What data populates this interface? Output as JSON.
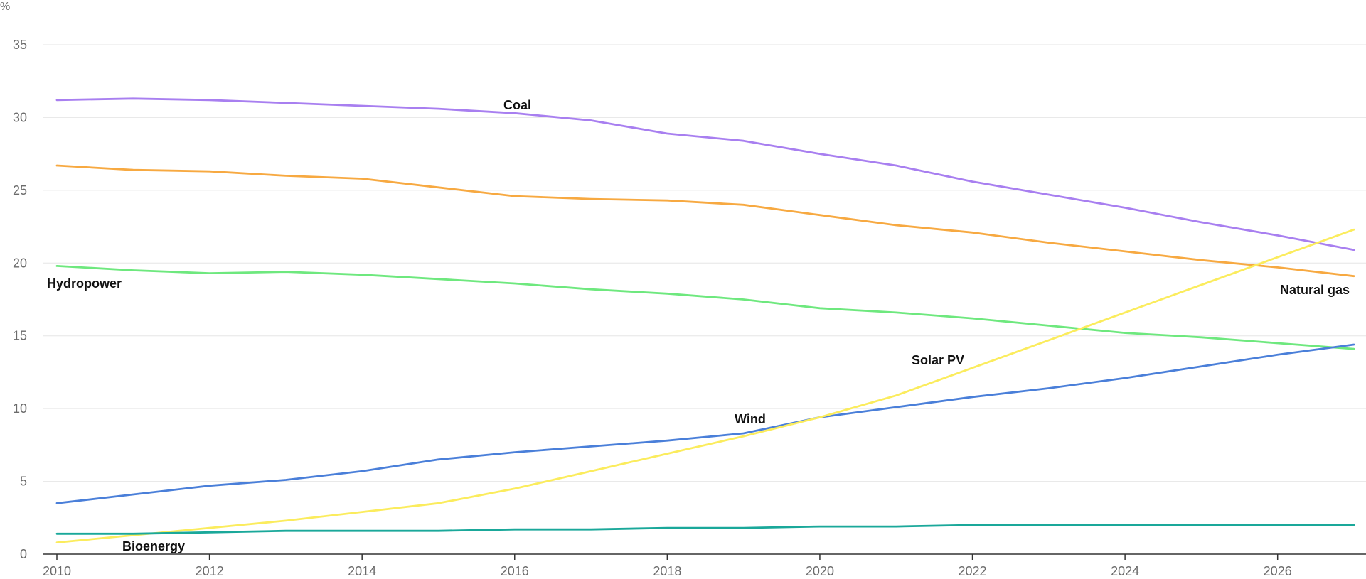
{
  "chart_data": {
    "type": "line",
    "y_unit": "%",
    "ylim": [
      0,
      35
    ],
    "xlim": [
      2010,
      2027
    ],
    "y_ticks": [
      0,
      5,
      10,
      15,
      20,
      25,
      30,
      35
    ],
    "x_ticks": [
      2010,
      2012,
      2014,
      2016,
      2018,
      2020,
      2022,
      2024,
      2026
    ],
    "grid": "horizontal",
    "x": [
      2010,
      2011,
      2012,
      2013,
      2014,
      2015,
      2016,
      2017,
      2018,
      2019,
      2020,
      2021,
      2022,
      2023,
      2024,
      2025,
      2026,
      2027
    ],
    "series": [
      {
        "name": "Coal",
        "color": "#a87ff0",
        "values": [
          31.2,
          31.3,
          31.2,
          31.0,
          30.8,
          30.6,
          30.3,
          29.8,
          28.9,
          28.4,
          27.5,
          26.7,
          25.6,
          24.7,
          23.8,
          22.8,
          21.9,
          20.9
        ]
      },
      {
        "name": "Natural gas",
        "color": "#f7a941",
        "values": [
          26.7,
          26.4,
          26.3,
          26.0,
          25.8,
          25.2,
          24.6,
          24.4,
          24.3,
          24.0,
          23.3,
          22.6,
          22.1,
          21.4,
          20.8,
          20.2,
          19.7,
          19.1
        ]
      },
      {
        "name": "Hydropower",
        "color": "#6ee87e",
        "values": [
          19.8,
          19.5,
          19.3,
          19.4,
          19.2,
          18.9,
          18.6,
          18.2,
          17.9,
          17.5,
          16.9,
          16.6,
          16.2,
          15.7,
          15.2,
          14.9,
          14.5,
          14.1
        ]
      },
      {
        "name": "Wind",
        "color": "#4a7fd9",
        "values": [
          3.5,
          4.1,
          4.7,
          5.1,
          5.7,
          6.5,
          7.0,
          7.4,
          7.8,
          8.3,
          9.4,
          10.1,
          10.8,
          11.4,
          12.1,
          12.9,
          13.7,
          14.4
        ]
      },
      {
        "name": "Solar PV",
        "color": "#fbec5d",
        "values": [
          0.8,
          1.3,
          1.8,
          2.3,
          2.9,
          3.5,
          4.5,
          5.7,
          6.9,
          8.1,
          9.4,
          10.9,
          12.8,
          14.7,
          16.6,
          18.5,
          20.4,
          22.3
        ]
      },
      {
        "name": "Bioenergy",
        "color": "#1aa89a",
        "values": [
          1.4,
          1.4,
          1.5,
          1.6,
          1.6,
          1.6,
          1.7,
          1.7,
          1.8,
          1.8,
          1.9,
          1.9,
          2.0,
          2.0,
          2.0,
          2.0,
          2.0,
          2.0
        ]
      }
    ]
  }
}
